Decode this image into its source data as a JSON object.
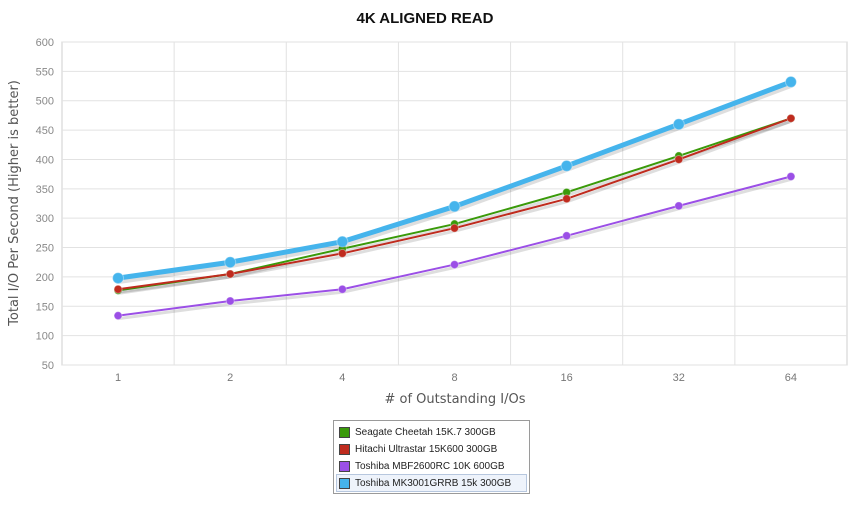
{
  "chart_data": {
    "type": "line",
    "title": "4K ALIGNED READ",
    "xlabel": "# of Outstanding I/Os",
    "ylabel": "Total I/O Per Second (Higher is better)",
    "categories": [
      "1",
      "2",
      "4",
      "8",
      "16",
      "32",
      "64"
    ],
    "ylim": [
      50,
      600
    ],
    "yticks": [
      50,
      100,
      150,
      200,
      250,
      300,
      350,
      400,
      450,
      500,
      550,
      600
    ],
    "grid": true,
    "legend_position": "bottom",
    "series": [
      {
        "name": "Seagate Cheetah 15K.7 300GB",
        "color": "#3a9a0a",
        "values": [
          177,
          205,
          248,
          290,
          344,
          406,
          470
        ]
      },
      {
        "name": "Hitachi Ultrastar 15K600 300GB",
        "color": "#bf2b1e",
        "values": [
          179,
          205,
          240,
          283,
          333,
          400,
          470
        ]
      },
      {
        "name": "Toshiba MBF2600RC 10K 600GB",
        "color": "#9b4fe6",
        "values": [
          134,
          159,
          179,
          221,
          270,
          321,
          371
        ]
      },
      {
        "name": "Toshiba MK3001GRRB 15k 300GB",
        "color": "#45b4ec",
        "values": [
          198,
          225,
          260,
          320,
          389,
          460,
          532
        ]
      }
    ]
  }
}
